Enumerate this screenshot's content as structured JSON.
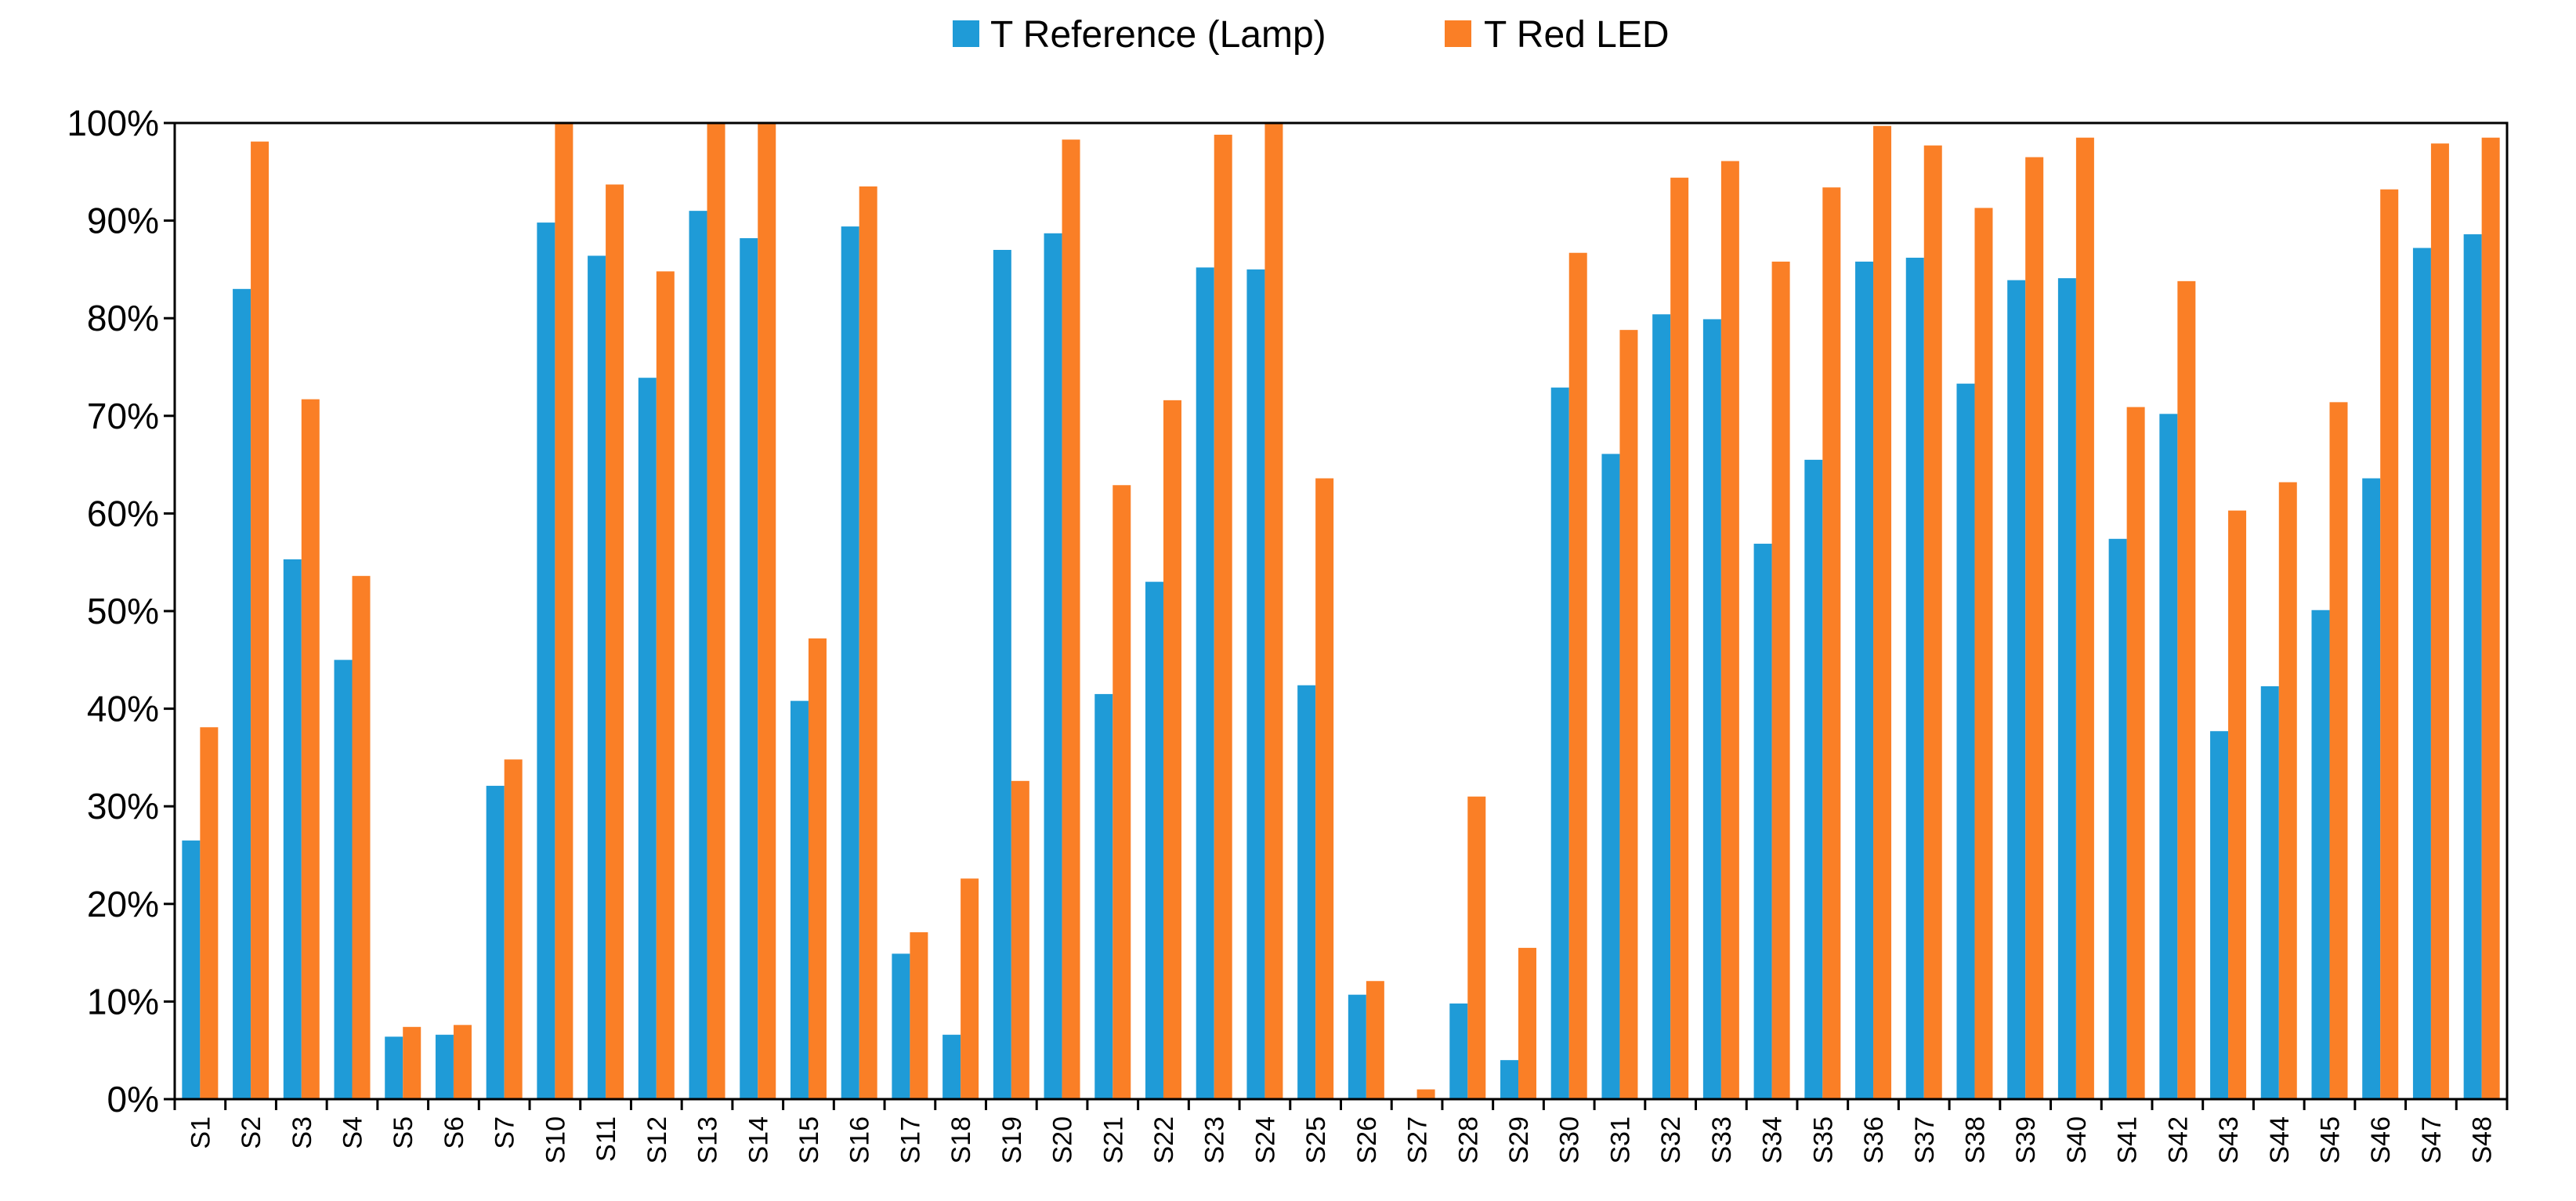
{
  "chart_data": {
    "type": "bar",
    "title": "",
    "xlabel": "",
    "ylabel": "",
    "ylim": [
      0,
      100
    ],
    "yticks": [
      0,
      10,
      20,
      30,
      40,
      50,
      60,
      70,
      80,
      90,
      100
    ],
    "ytick_labels": [
      "0%",
      "10%",
      "20%",
      "30%",
      "40%",
      "50%",
      "60%",
      "70%",
      "80%",
      "90%",
      "100%"
    ],
    "grid": false,
    "legend_position": "top-center",
    "categories": [
      "S1",
      "S2",
      "S3",
      "S4",
      "S5",
      "S6",
      "S7",
      "S10",
      "S11",
      "S12",
      "S13",
      "S14",
      "S15",
      "S16",
      "S17",
      "S18",
      "S19",
      "S20",
      "S21",
      "S22",
      "S23",
      "S24",
      "S25",
      "S26",
      "S27",
      "S28",
      "S29",
      "S30",
      "S31",
      "S32",
      "S33",
      "S34",
      "S35",
      "S36",
      "S37",
      "S38",
      "S39",
      "S40",
      "S41",
      "S42",
      "S43",
      "S44",
      "S45",
      "S46",
      "S47",
      "S48"
    ],
    "series": [
      {
        "name": "T Reference (Lamp)",
        "color": "#1f9bd7",
        "values": [
          26.5,
          83,
          55.3,
          45,
          6.4,
          6.6,
          32.1,
          89.8,
          86.4,
          73.9,
          91,
          88.2,
          40.8,
          89.4,
          14.9,
          6.6,
          87,
          88.7,
          41.5,
          53,
          85.2,
          85,
          42.4,
          10.7,
          0,
          9.8,
          4,
          72.9,
          66.1,
          80.4,
          79.9,
          56.9,
          65.5,
          85.8,
          86.2,
          73.3,
          83.9,
          84.1,
          57.4,
          70.2,
          37.7,
          42.3,
          50.1,
          63.6,
          87.2,
          88.6
        ]
      },
      {
        "name": "T Red LED",
        "color": "#fa7f26",
        "values": [
          38.1,
          98.1,
          71.7,
          53.6,
          7.4,
          7.6,
          34.8,
          100,
          93.7,
          84.8,
          100,
          100,
          47.2,
          93.5,
          17.1,
          22.6,
          32.6,
          98.3,
          62.9,
          71.6,
          98.8,
          100,
          63.6,
          12.1,
          1,
          31,
          15.5,
          86.7,
          78.8,
          94.4,
          96.1,
          85.8,
          93.4,
          99.7,
          97.7,
          91.3,
          96.5,
          98.5,
          70.9,
          83.8,
          60.3,
          63.2,
          71.4,
          93.2,
          97.9,
          98.5
        ]
      }
    ]
  }
}
